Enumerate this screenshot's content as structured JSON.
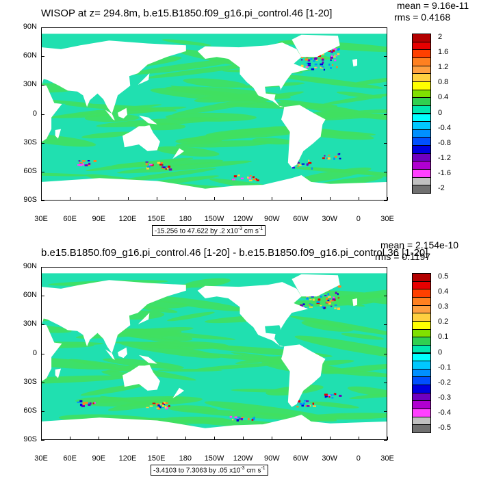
{
  "chart_data": [
    {
      "type": "heatmap",
      "title": "WISOP at z= 294.8m, b.e15.B1850.f09_g16.pi_control.46 [1-20]",
      "stats": {
        "mean": "mean = 9.16e-11",
        "rms": "rms = 0.4168"
      },
      "y_ticks": [
        "90N",
        "60N",
        "30N",
        "0",
        "30S",
        "60S",
        "90S"
      ],
      "x_ticks": [
        "30E",
        "60E",
        "90E",
        "120E",
        "150E",
        "180",
        "150W",
        "120W",
        "90W",
        "60W",
        "30W",
        "0",
        "30E"
      ],
      "range_label": {
        "text": "-15.256 to 47.622 by .2 x10",
        "exp": "-3",
        "unit": " cm s",
        "unit_exp": "-1"
      },
      "colorbar": {
        "levels": [
          "2",
          "1.6",
          "1.2",
          "0.8",
          "0.4",
          "0",
          "-0.4",
          "-0.8",
          "-1.2",
          "-1.6",
          "-2"
        ],
        "colors": [
          "#b30000",
          "#e60000",
          "#ff4000",
          "#ff8020",
          "#ffa040",
          "#ffd040",
          "#ffff00",
          "#80e000",
          "#30d050",
          "#00e8b0",
          "#00ffff",
          "#00c8ff",
          "#0090ff",
          "#0050ff",
          "#0000e0",
          "#7000c0",
          "#b000d0",
          "#ff40ff",
          "#c0c0c0",
          "#707070"
        ]
      }
    },
    {
      "type": "heatmap",
      "title": "b.e15.B1850.f09_g16.pi_control.46 [1-20] - b.e15.B1850.f09_g16.pi_control.36 [1-20]",
      "stats": {
        "mean": "mean = 2.154e-10",
        "rms": "rms = 0.1197"
      },
      "y_ticks": [
        "90N",
        "60N",
        "30N",
        "0",
        "30S",
        "60S",
        "90S"
      ],
      "x_ticks": [
        "30E",
        "60E",
        "90E",
        "120E",
        "150E",
        "180",
        "150W",
        "120W",
        "90W",
        "60W",
        "30W",
        "0",
        "30E"
      ],
      "range_label": {
        "text": "-3.4103 to 7.3063 by .05 x10",
        "exp": "-3",
        "unit": " cm s",
        "unit_exp": "-1"
      },
      "colorbar": {
        "levels": [
          "0.5",
          "0.4",
          "0.3",
          "0.2",
          "0.1",
          "0",
          "-0.1",
          "-0.2",
          "-0.3",
          "-0.4",
          "-0.5"
        ],
        "colors": [
          "#b30000",
          "#e60000",
          "#ff4000",
          "#ff8020",
          "#ffa040",
          "#ffd040",
          "#ffff00",
          "#80e000",
          "#30d050",
          "#00e8b0",
          "#00ffff",
          "#00c8ff",
          "#0090ff",
          "#0050ff",
          "#0000e0",
          "#7000c0",
          "#b000d0",
          "#ff40ff",
          "#c0c0c0",
          "#707070"
        ]
      }
    }
  ],
  "map_colors": {
    "ocean_base": "#20e0b0",
    "ocean_band": "#40e060",
    "land": "#ffffff"
  }
}
